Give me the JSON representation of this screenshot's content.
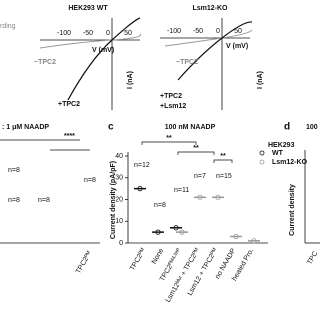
{
  "figure": {
    "top_left": {
      "title": "HEK293  WT",
      "cut_label": "rding",
      "xlabel": "V (mV)",
      "ylabel": "I (nA)",
      "ticks": [
        "-100",
        "-50",
        "0",
        "50"
      ],
      "minus": "−TPC2",
      "plus": "+TPC2"
    },
    "top_right": {
      "title": "Lsm12-KO",
      "xlabel": "V (mV)",
      "ylabel": "I (nA)",
      "ticks": [
        "-100",
        "-50",
        "0",
        "50"
      ],
      "minus": "−TPC2",
      "plus": "+TPC2",
      "plus2": "+Lsm12"
    },
    "panel_b": {
      "title": ": 1 μM NAADP",
      "sig": "****",
      "n_labels": [
        "n=8",
        "n=8",
        "n=8",
        "n=8"
      ],
      "axis_text": "TPC2ᴾᴹ"
    },
    "panel_d": {
      "label": "d",
      "title": "100",
      "ylabel": "Current density",
      "axis_text": "TPC"
    }
  },
  "chart_data": {
    "type": "strip",
    "label": "c",
    "title": "100 nM NAADP",
    "ylabel": "Current density (pA/pF)",
    "legend_title": "HEK293",
    "categories": [
      "TPC2ᴾᴹ",
      "None",
      "TPC2ᴾᴹʴᴸ³⁸ᴾ",
      "Lsm12ᴹᵘᵗ + TPC2ᴾᴹ",
      "Lsm12 + TPC2ᴾᴹ",
      "no NAADP",
      "heated Pro."
    ],
    "series": [
      {
        "name": "WT",
        "color": "#111111",
        "values": [
          25,
          5,
          7,
          null,
          null,
          null,
          null
        ]
      },
      {
        "name": "Lsm12-KO",
        "color": "#999999",
        "values": [
          null,
          null,
          5,
          21,
          21,
          3,
          1
        ]
      }
    ],
    "ylim": [
      0,
      40
    ],
    "yticks": [
      0,
      10,
      20,
      30,
      40
    ],
    "n_labels": [
      "n=12",
      "n=8",
      "n=11",
      "n=7",
      "n=15"
    ],
    "sig": [
      "**",
      "**",
      "**"
    ]
  }
}
